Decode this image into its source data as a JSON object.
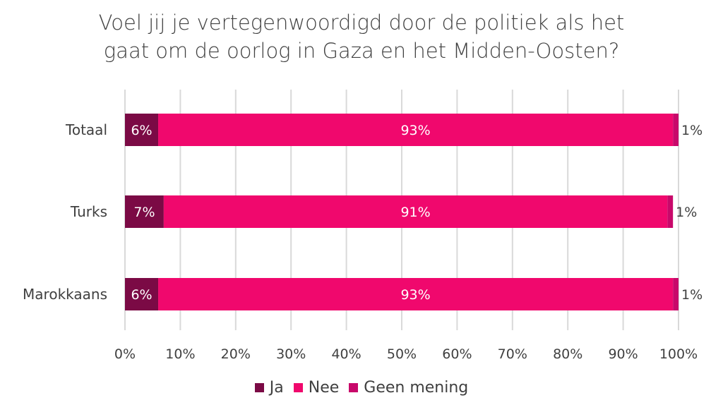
{
  "title_lines": [
    "Voel jij je vertegenwoordigd door de politiek als het",
    "gaat om de oorlog in Gaza en het Midden-Oosten?"
  ],
  "colors": {
    "Ja": "#7b0a45",
    "Nee": "#f0086d",
    "Geen mening": "#c8086a",
    "grid": "#d9d9d9",
    "text": "#404040"
  },
  "chart_data": {
    "type": "bar",
    "orientation": "horizontal",
    "stacked": true,
    "categories": [
      "Totaal",
      "Turks",
      "Marokkaans"
    ],
    "series": [
      {
        "name": "Ja",
        "values": [
          6,
          7,
          6
        ],
        "labels": [
          "6%",
          "7%",
          "6%"
        ]
      },
      {
        "name": "Nee",
        "values": [
          93,
          91,
          93
        ],
        "labels": [
          "93%",
          "91%",
          "93%"
        ]
      },
      {
        "name": "Geen mening",
        "values": [
          1,
          1,
          1
        ],
        "labels": [
          "1%",
          "1%",
          "1%"
        ]
      }
    ],
    "xlim": [
      0,
      100
    ],
    "xticks": [
      "0%",
      "10%",
      "20%",
      "30%",
      "40%",
      "50%",
      "60%",
      "70%",
      "80%",
      "90%",
      "100%"
    ],
    "grid": true,
    "legend_position": "bottom"
  },
  "legend": [
    {
      "label": "Ja",
      "color": "#7b0a45"
    },
    {
      "label": "Nee",
      "color": "#f0086d"
    },
    {
      "label": "Geen mening",
      "color": "#c8086a"
    }
  ]
}
